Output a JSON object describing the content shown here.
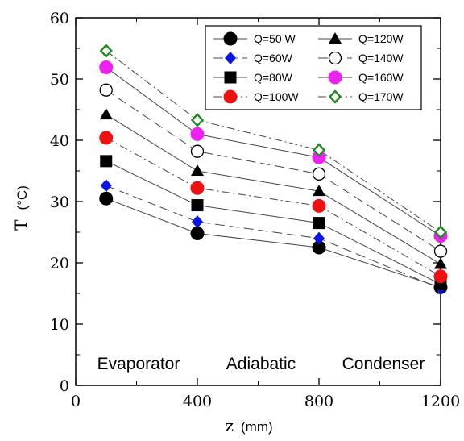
{
  "chart_data": {
    "type": "line",
    "xlabel_symbol": "z",
    "xlabel_unit": "(mm)",
    "ylabel_symbol": "T",
    "ylabel_unit": "(°C)",
    "xlim": [
      0,
      1200
    ],
    "ylim": [
      0,
      60
    ],
    "x_ticks": [
      0,
      400,
      800,
      1200
    ],
    "y_ticks": [
      0,
      10,
      20,
      30,
      40,
      50,
      60
    ],
    "x": [
      100,
      400,
      800,
      1200
    ],
    "grid": false,
    "legend_position": "top-right",
    "annotations": [
      {
        "text": "Evaporator",
        "x": 200,
        "y": 3.5
      },
      {
        "text": "Adiabatic",
        "x": 600,
        "y": 3.5
      },
      {
        "text": "Condenser",
        "x": 1000,
        "y": 3.5
      }
    ],
    "series": [
      {
        "name": "Q=50 W",
        "values": [
          30.5,
          24.8,
          22.5,
          16.0
        ],
        "marker": "circle-filled",
        "color": "#000000",
        "line": "solid"
      },
      {
        "name": "Q=60W",
        "values": [
          32.6,
          26.7,
          24.0,
          15.8
        ],
        "marker": "diamond-filled",
        "color": "#0a14e6",
        "line": "dashed"
      },
      {
        "name": "Q=80W",
        "values": [
          36.6,
          29.4,
          26.5,
          16.5
        ],
        "marker": "square-filled",
        "color": "#000000",
        "line": "solid"
      },
      {
        "name": "Q=100W",
        "values": [
          40.4,
          32.2,
          29.3,
          17.8
        ],
        "marker": "circle-filled",
        "color": "#ee1111",
        "line": "dashdot"
      },
      {
        "name": "Q=120W",
        "values": [
          44.2,
          35.0,
          31.7,
          19.8
        ],
        "marker": "triangle-filled",
        "color": "#000000",
        "line": "solid"
      },
      {
        "name": "Q=140W",
        "values": [
          48.2,
          38.2,
          34.5,
          21.9
        ],
        "marker": "circle-open",
        "color": "#000000",
        "line": "dashed"
      },
      {
        "name": "Q=160W",
        "values": [
          51.9,
          41.0,
          37.2,
          24.4
        ],
        "marker": "circle-filled",
        "color": "#ee22ee",
        "line": "solid"
      },
      {
        "name": "Q=170W",
        "values": [
          54.6,
          43.3,
          38.4,
          25.0
        ],
        "marker": "diamond-open",
        "color": "#1f8a1f",
        "line": "dashdot"
      }
    ]
  }
}
